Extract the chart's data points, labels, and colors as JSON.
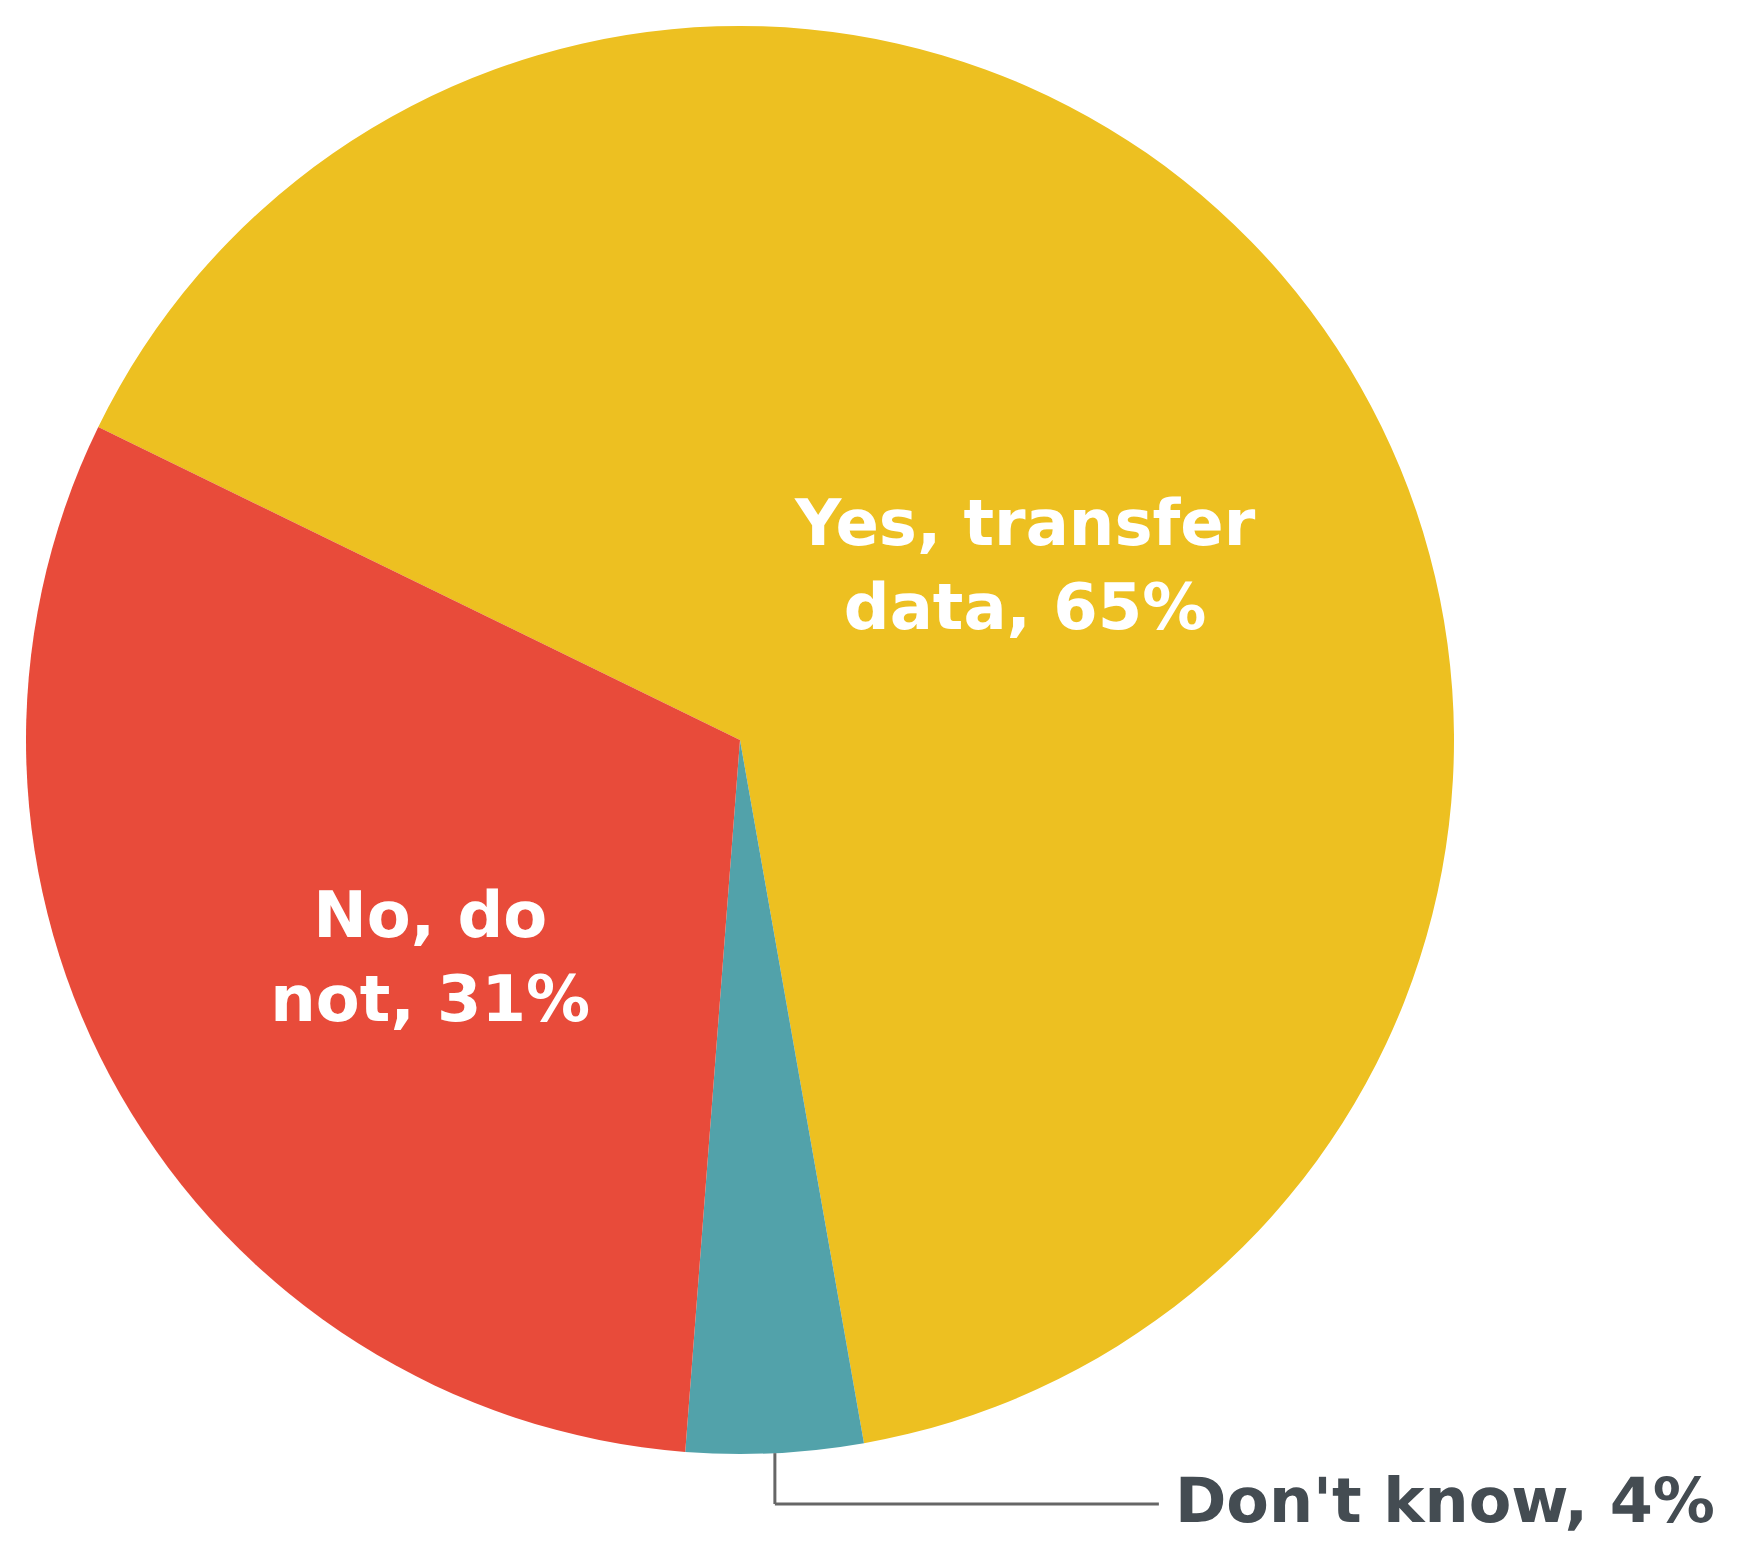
{
  "chart_data": {
    "type": "pie",
    "categories": [
      "Yes, transfer data",
      "Don't know",
      "No, do not"
    ],
    "values": [
      65,
      4,
      31
    ],
    "value_labels": [
      "65%",
      "4%",
      "31%"
    ],
    "colors": [
      "#edc021",
      "#52a2aa",
      "#e84b3a"
    ]
  }
}
